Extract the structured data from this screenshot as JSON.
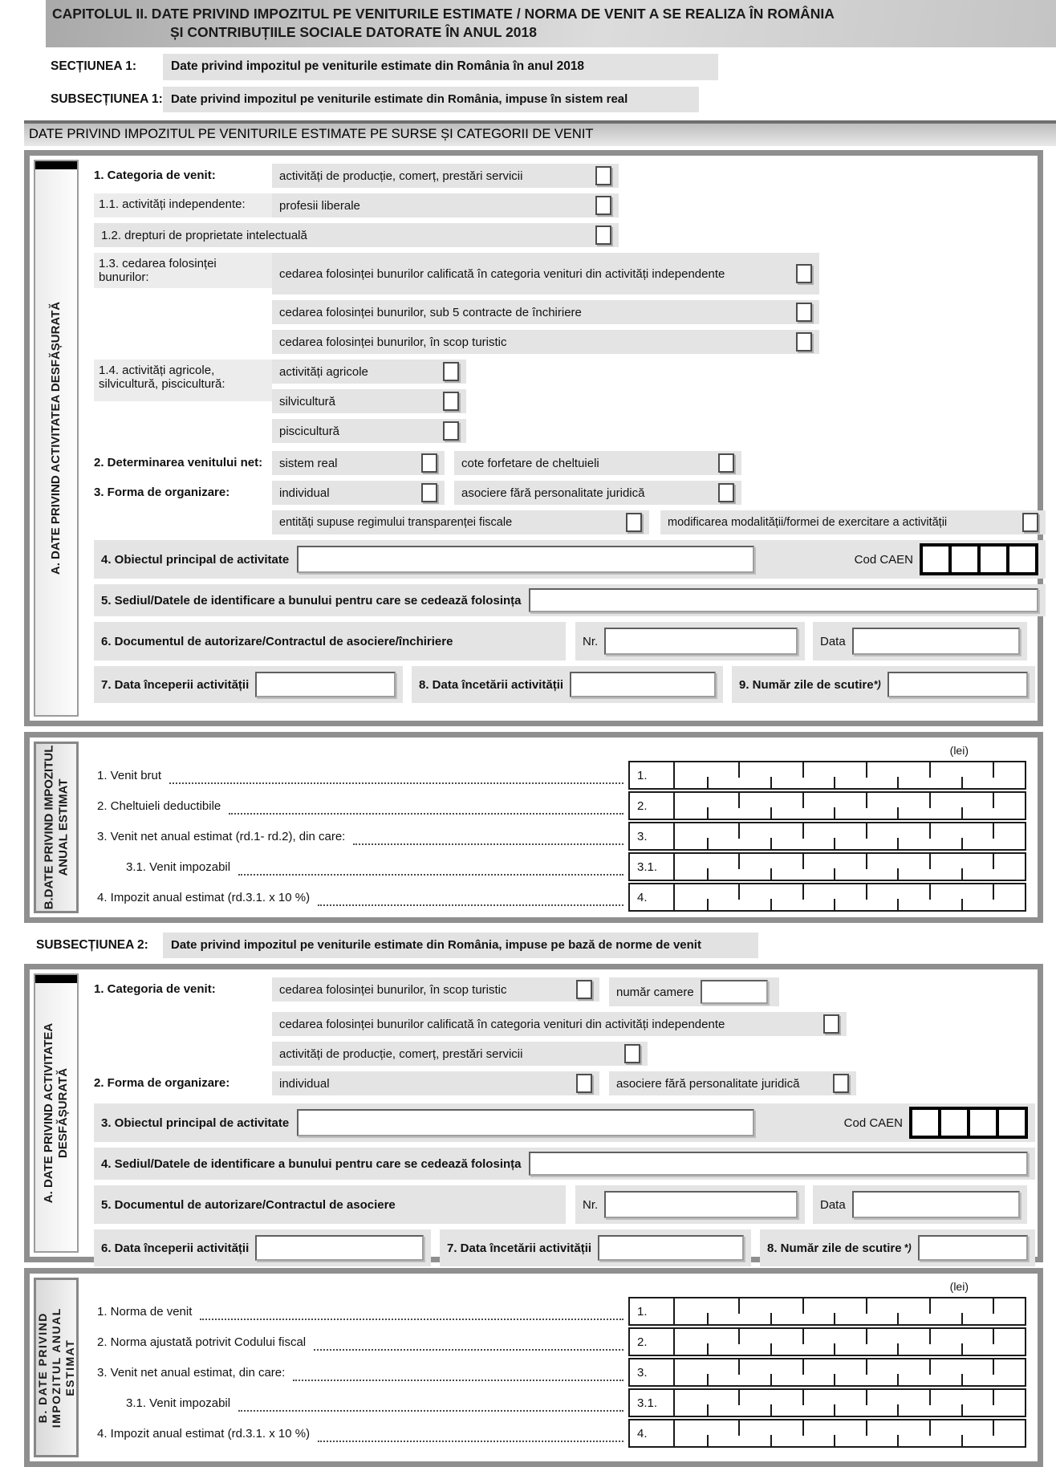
{
  "header": {
    "line1": "CAPITOLUL II. DATE PRIVIND IMPOZITUL PE VENITURILE ESTIMATE / NORMA DE VENIT A SE REALIZA ÎN ROMÂNIA",
    "line2": "ȘI CONTRIBUȚIILE SOCIALE DATORATE ÎN ANUL 2018"
  },
  "sectiunea1": {
    "label": "SECȚIUNEA 1:",
    "title": "Date privind impozitul pe veniturile estimate din România în anul 2018"
  },
  "subsectiunea1": {
    "label": "SUBSECȚIUNEA 1:",
    "title": "Date privind impozitul pe veniturile estimate din România, impuse în sistem real"
  },
  "band_title": "DATE PRIVIND IMPOZITUL PE VENITURILE ESTIMATE PE SURSE ȘI CATEGORII DE VENIT",
  "sub1": {
    "a": {
      "sidebar": "A. DATE PRIVIND ACTIVITATEA DESFĂȘURATĂ",
      "cat_label": "1. Categoria de venit:",
      "cat_value": "activități de producție, comerț, prestări servicii",
      "r11_label": "1.1. activități independente:",
      "r11_value": "profesii liberale",
      "r12": "1.2. drepturi de proprietate intelectuală",
      "r13_label": "1.3. cedarea folosinței bunurilor:",
      "r13_opt1": "cedarea folosinței bunurilor calificată în categoria venituri din activități independente",
      "r13_opt2": "cedarea folosinței bunurilor, sub 5 contracte de închiriere",
      "r13_opt3": "cedarea folosinței bunurilor, în scop turistic",
      "r14_label": "1.4. activități agricole, silvicultură, piscicultură:",
      "r14_opt1": "activități agricole",
      "r14_opt2": "silvicultură",
      "r14_opt3": "piscicultură",
      "r2_label": "2. Determinarea venitului net:",
      "r2_opt1": "sistem real",
      "r2_opt2": "cote forfetare de cheltuieli",
      "r3_label": "3. Forma de organizare:",
      "r3_opt1": "individual",
      "r3_opt2": "asociere fără personalitate juridică",
      "r3_opt3": "entități supuse regimului transparenței fiscale",
      "r3_opt4": "modificarea modalității/formei de exercitare a activității",
      "r4_label": "4. Obiectul principal de activitate",
      "caen": "Cod CAEN",
      "r5_label": "5. Sediul/Datele de identificare a bunului pentru care se cedează folosința",
      "r6_label": "6. Documentul de autorizare/Contractul de asociere/închiriere",
      "nr": "Nr.",
      "data": "Data",
      "r7_label": "7. Data începerii activității",
      "r8_label": "8. Data încetării activității",
      "r9_label": "9. Număr zile de scutire",
      "r9_note": "*)"
    },
    "b": {
      "sidebar1": "B.DATE PRIVIND IMPOZITUL",
      "sidebar2": "ANUAL ESTIMAT",
      "lei": "(lei)",
      "rows": [
        {
          "num": "1.",
          "label": "1. Venit brut"
        },
        {
          "num": "2.",
          "label": "2. Cheltuieli deductibile"
        },
        {
          "num": "3.",
          "label": "3. Venit net anual estimat (rd.1- rd.2), din care:"
        },
        {
          "num": "3.1.",
          "label": "3.1. Venit impozabil"
        },
        {
          "num": "4.",
          "label": "4. Impozit anual estimat (rd.3.1. x 10 %)"
        }
      ]
    }
  },
  "subsectiunea2": {
    "label": "SUBSECȚIUNEA 2:",
    "title": "Date privind impozitul pe veniturile estimate din România, impuse pe bază de norme de venit"
  },
  "sub2": {
    "a": {
      "sidebar1": "A. DATE PRIVIND ACTIVITATEA",
      "sidebar2": "DESFĂȘURATĂ",
      "cat_label": "1. Categoria de venit:",
      "opt_turistic": "cedarea folosinței bunurilor, în scop turistic",
      "camere": "număr camere",
      "opt_calificata": "cedarea folosinței bunurilor calificată în categoria venituri din activități independente",
      "opt_productie": "activități de producție, comerț, prestări servicii",
      "forma_label": "2. Forma de organizare:",
      "forma_opt1": "individual",
      "forma_opt2": "asociere fără personalitate juridică",
      "r3_label": "3. Obiectul principal de activitate",
      "caen": "Cod CAEN",
      "r4_label": "4. Sediul/Datele de identificare a bunului pentru care se cedează folosința",
      "r5_label": "5. Documentul de autorizare/Contractul de asociere",
      "nr": "Nr.",
      "data": "Data",
      "r6_label": "6. Data începerii activității",
      "r7_label": "7. Data încetării activității",
      "r8_label": "8. Număr zile de scutire",
      "r8_note": "*)"
    },
    "b": {
      "sidebar1": "B. DATE PRIVIND",
      "sidebar2": "IMPOZITUL ANUAL",
      "sidebar3": "ESTIMAT",
      "lei": "(lei)",
      "rows": [
        {
          "num": "1.",
          "label": "1. Norma de venit"
        },
        {
          "num": "2.",
          "label": "2. Norma ajustată potrivit Codului fiscal"
        },
        {
          "num": "3.",
          "label": "3. Venit net anual estimat, din care:"
        },
        {
          "num": "3.1.",
          "label": "3.1. Venit impozabil"
        },
        {
          "num": "4.",
          "label": "4. Impozit anual estimat (rd.3.1. x 10 %)"
        }
      ]
    }
  }
}
